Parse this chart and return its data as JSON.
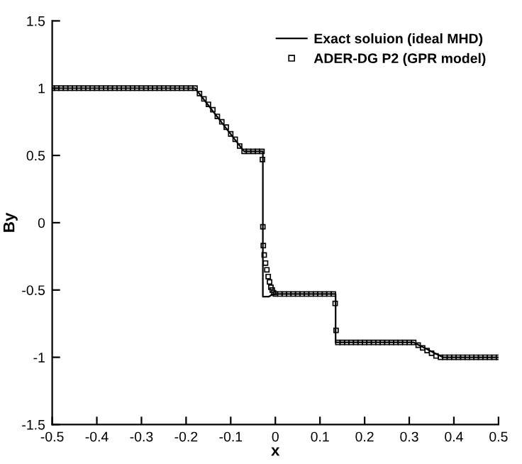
{
  "chart_data": {
    "type": "line",
    "xlabel": "x",
    "ylabel": "By",
    "xlim": [
      -0.5,
      0.5
    ],
    "ylim": [
      -1.5,
      1.5
    ],
    "xticks": [
      -0.5,
      -0.4,
      -0.3,
      -0.2,
      -0.1,
      0,
      0.1,
      0.2,
      0.3,
      0.4,
      0.5
    ],
    "yticks": [
      -1.5,
      -1,
      -0.5,
      0,
      0.5,
      1,
      1.5
    ],
    "grid": false,
    "legend": "top right",
    "series": [
      {
        "name": "Exact soluion (ideal MHD)",
        "color": "#000000",
        "line_style": "solid",
        "marker": "none",
        "x": [
          -0.5,
          -0.18,
          -0.07,
          -0.028,
          -0.028,
          -0.015,
          -0.005,
          0.135,
          0.135,
          0.31,
          0.375,
          0.5
        ],
        "values": [
          1,
          1,
          0.53,
          0.53,
          -0.55,
          -0.55,
          -0.53,
          -0.53,
          -0.89,
          -0.89,
          -1,
          -1
        ]
      },
      {
        "name": "ADER-DG P2 (GPR model)",
        "type": "scatter",
        "color": "#000000",
        "marker": "square",
        "x": [
          -0.5,
          -0.49,
          -0.48,
          -0.47,
          -0.46,
          -0.45,
          -0.44,
          -0.43,
          -0.42,
          -0.41,
          -0.4,
          -0.39,
          -0.38,
          -0.37,
          -0.36,
          -0.35,
          -0.34,
          -0.33,
          -0.32,
          -0.31,
          -0.3,
          -0.29,
          -0.28,
          -0.27,
          -0.26,
          -0.25,
          -0.24,
          -0.23,
          -0.22,
          -0.21,
          -0.2,
          -0.19,
          -0.18,
          -0.17,
          -0.16,
          -0.15,
          -0.14,
          -0.13,
          -0.12,
          -0.11,
          -0.1,
          -0.09,
          -0.08,
          -0.07,
          -0.06,
          -0.05,
          -0.04,
          -0.03,
          -0.029,
          -0.028,
          -0.027,
          -0.025,
          -0.022,
          -0.019,
          -0.016,
          -0.013,
          -0.01,
          -0.007,
          -0.004,
          0,
          0.01,
          0.02,
          0.03,
          0.04,
          0.05,
          0.06,
          0.07,
          0.08,
          0.09,
          0.1,
          0.11,
          0.12,
          0.13,
          0.134,
          0.136,
          0.14,
          0.15,
          0.16,
          0.17,
          0.18,
          0.19,
          0.2,
          0.21,
          0.22,
          0.23,
          0.24,
          0.25,
          0.26,
          0.27,
          0.28,
          0.29,
          0.3,
          0.31,
          0.32,
          0.33,
          0.34,
          0.35,
          0.36,
          0.37,
          0.38,
          0.39,
          0.4,
          0.41,
          0.42,
          0.43,
          0.44,
          0.45,
          0.46,
          0.47,
          0.48,
          0.49,
          0.5
        ],
        "values": [
          1,
          1,
          1,
          1,
          1,
          1,
          1,
          1,
          1,
          1,
          1,
          1,
          1,
          1,
          1,
          1,
          1,
          1,
          1,
          1,
          1,
          1,
          1,
          1,
          1,
          1,
          1,
          1,
          1,
          1,
          1,
          1,
          1,
          0.96,
          0.92,
          0.88,
          0.84,
          0.79,
          0.75,
          0.71,
          0.66,
          0.62,
          0.57,
          0.53,
          0.53,
          0.53,
          0.53,
          0.53,
          0.47,
          -0.03,
          -0.17,
          -0.24,
          -0.3,
          -0.35,
          -0.4,
          -0.44,
          -0.48,
          -0.5,
          -0.52,
          -0.53,
          -0.53,
          -0.53,
          -0.53,
          -0.53,
          -0.53,
          -0.53,
          -0.53,
          -0.53,
          -0.53,
          -0.53,
          -0.53,
          -0.53,
          -0.53,
          -0.6,
          -0.8,
          -0.89,
          -0.89,
          -0.89,
          -0.89,
          -0.89,
          -0.89,
          -0.89,
          -0.89,
          -0.89,
          -0.89,
          -0.89,
          -0.89,
          -0.89,
          -0.89,
          -0.89,
          -0.89,
          -0.89,
          -0.89,
          -0.91,
          -0.93,
          -0.95,
          -0.97,
          -0.99,
          -1,
          -1,
          -1,
          -1,
          -1,
          -1,
          -1,
          -1,
          -1,
          -1,
          -1,
          -1,
          -1,
          -1
        ]
      }
    ]
  }
}
